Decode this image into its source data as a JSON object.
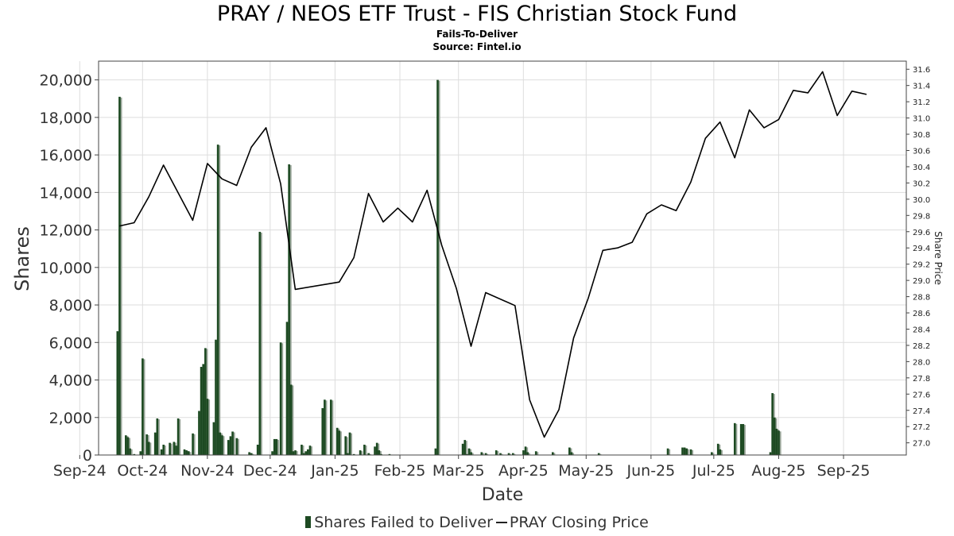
{
  "chart_data": {
    "type": "bar",
    "title": "PRAY / NEOS ETF Trust - FIS Christian Stock Fund",
    "subtitle_1": "Fails-To-Deliver",
    "subtitle_2": "Source: Fintel.io",
    "xlabel": "Date",
    "ylabel": "Shares",
    "y2label": "Share Price",
    "x_ticks": [
      "Sep-24",
      "Oct-24",
      "Nov-24",
      "Dec-24",
      "Jan-25",
      "Feb-25",
      "Mar-25",
      "Apr-25",
      "May-25",
      "Jun-25",
      "Jul-25",
      "Aug-25",
      "Sep-25"
    ],
    "y_ticks": [
      "0",
      "2,000",
      "4,000",
      "6,000",
      "8,000",
      "10,000",
      "12,000",
      "14,000",
      "16,000",
      "18,000",
      "20,000"
    ],
    "y2_ticks": [
      "27.0",
      "27.2",
      "27.4",
      "27.6",
      "27.8",
      "28.0",
      "28.2",
      "28.4",
      "28.6",
      "28.8",
      "29.0",
      "29.2",
      "29.4",
      "29.6",
      "29.8",
      "30.0",
      "30.2",
      "30.4",
      "30.6",
      "30.8",
      "31.0",
      "31.2",
      "31.4",
      "31.6"
    ],
    "ylim": [
      0,
      21000
    ],
    "y2lim": [
      26.85,
      31.7
    ],
    "grid": true,
    "legend_position": "bottom",
    "colors": {
      "bar": "#1d4a22",
      "bar_shadow": "#9aa69a",
      "line": "#000000",
      "grid": "#dddddd"
    },
    "series": [
      {
        "name": "Shares Failed to Deliver",
        "type": "bar",
        "points": [
          [
            "2024-09-19",
            6600
          ],
          [
            "2024-09-20",
            19100
          ],
          [
            "2024-09-23",
            1050
          ],
          [
            "2024-09-24",
            950
          ],
          [
            "2024-09-25",
            350
          ],
          [
            "2024-09-27",
            50
          ],
          [
            "2024-09-30",
            200
          ],
          [
            "2024-10-01",
            5150
          ],
          [
            "2024-10-03",
            1100
          ],
          [
            "2024-10-04",
            700
          ],
          [
            "2024-10-07",
            1200
          ],
          [
            "2024-10-08",
            1950
          ],
          [
            "2024-10-10",
            300
          ],
          [
            "2024-10-11",
            550
          ],
          [
            "2024-10-14",
            650
          ],
          [
            "2024-10-16",
            700
          ],
          [
            "2024-10-17",
            500
          ],
          [
            "2024-10-18",
            1950
          ],
          [
            "2024-10-21",
            300
          ],
          [
            "2024-10-22",
            250
          ],
          [
            "2024-10-23",
            200
          ],
          [
            "2024-10-25",
            1150
          ],
          [
            "2024-10-28",
            2350
          ],
          [
            "2024-10-29",
            4700
          ],
          [
            "2024-10-30",
            4850
          ],
          [
            "2024-10-31",
            5700
          ],
          [
            "2024-11-01",
            3000
          ],
          [
            "2024-11-04",
            1750
          ],
          [
            "2024-11-05",
            6150
          ],
          [
            "2024-11-06",
            16550
          ],
          [
            "2024-11-07",
            1200
          ],
          [
            "2024-11-08",
            1050
          ],
          [
            "2024-11-11",
            800
          ],
          [
            "2024-11-12",
            1000
          ],
          [
            "2024-11-13",
            1250
          ],
          [
            "2024-11-15",
            900
          ],
          [
            "2024-11-21",
            150
          ],
          [
            "2024-11-22",
            100
          ],
          [
            "2024-11-25",
            550
          ],
          [
            "2024-11-26",
            11900
          ],
          [
            "2024-12-02",
            200
          ],
          [
            "2024-12-03",
            850
          ],
          [
            "2024-12-04",
            850
          ],
          [
            "2024-12-06",
            6000
          ],
          [
            "2024-12-09",
            7100
          ],
          [
            "2024-12-10",
            15500
          ],
          [
            "2024-12-11",
            3750
          ],
          [
            "2024-12-12",
            200
          ],
          [
            "2024-12-13",
            250
          ],
          [
            "2024-12-16",
            550
          ],
          [
            "2024-12-17",
            100
          ],
          [
            "2024-12-18",
            200
          ],
          [
            "2024-12-19",
            300
          ],
          [
            "2024-12-20",
            500
          ],
          [
            "2024-12-26",
            2500
          ],
          [
            "2024-12-27",
            2950
          ],
          [
            "2024-12-30",
            2950
          ],
          [
            "2025-01-02",
            1450
          ],
          [
            "2025-01-03",
            1300
          ],
          [
            "2025-01-06",
            1000
          ],
          [
            "2025-01-07",
            100
          ],
          [
            "2025-01-08",
            1200
          ],
          [
            "2025-01-10",
            50
          ],
          [
            "2025-01-13",
            250
          ],
          [
            "2025-01-15",
            550
          ],
          [
            "2025-01-17",
            100
          ],
          [
            "2025-01-20",
            450
          ],
          [
            "2025-01-21",
            650
          ],
          [
            "2025-01-22",
            250
          ],
          [
            "2025-01-23",
            50
          ],
          [
            "2025-01-27",
            50
          ],
          [
            "2025-02-18",
            350
          ],
          [
            "2025-02-19",
            20000
          ],
          [
            "2025-03-03",
            600
          ],
          [
            "2025-03-04",
            800
          ],
          [
            "2025-03-05",
            50
          ],
          [
            "2025-03-06",
            350
          ],
          [
            "2025-03-07",
            150
          ],
          [
            "2025-03-12",
            150
          ],
          [
            "2025-03-14",
            100
          ],
          [
            "2025-03-19",
            250
          ],
          [
            "2025-03-21",
            100
          ],
          [
            "2025-03-25",
            100
          ],
          [
            "2025-03-27",
            100
          ],
          [
            "2025-04-01",
            250
          ],
          [
            "2025-04-02",
            450
          ],
          [
            "2025-04-03",
            150
          ],
          [
            "2025-04-07",
            200
          ],
          [
            "2025-04-15",
            150
          ],
          [
            "2025-04-23",
            400
          ],
          [
            "2025-04-24",
            150
          ],
          [
            "2025-05-07",
            100
          ],
          [
            "2025-06-09",
            350
          ],
          [
            "2025-06-16",
            400
          ],
          [
            "2025-06-17",
            400
          ],
          [
            "2025-06-18",
            350
          ],
          [
            "2025-06-20",
            300
          ],
          [
            "2025-06-30",
            150
          ],
          [
            "2025-07-03",
            600
          ],
          [
            "2025-07-04",
            300
          ],
          [
            "2025-07-11",
            1700
          ],
          [
            "2025-07-14",
            1650
          ],
          [
            "2025-07-15",
            1650
          ],
          [
            "2025-07-28",
            150
          ],
          [
            "2025-07-29",
            3300
          ],
          [
            "2025-07-30",
            2000
          ],
          [
            "2025-07-31",
            1400
          ],
          [
            "2025-08-01",
            1300
          ]
        ]
      },
      {
        "name": "PRAY Closing Price",
        "type": "line",
        "points": [
          [
            "2024-09-20",
            29.67
          ],
          [
            "2024-09-27",
            29.71
          ],
          [
            "2024-10-04",
            30.03
          ],
          [
            "2024-10-11",
            30.42
          ],
          [
            "2024-10-25",
            29.74
          ],
          [
            "2024-11-01",
            30.44
          ],
          [
            "2024-11-08",
            30.25
          ],
          [
            "2024-11-15",
            30.17
          ],
          [
            "2024-11-22",
            30.64
          ],
          [
            "2024-11-29",
            30.88
          ],
          [
            "2024-12-06",
            30.19
          ],
          [
            "2024-12-13",
            28.89
          ],
          [
            "2025-01-03",
            28.98
          ],
          [
            "2025-01-10",
            29.28
          ],
          [
            "2025-01-17",
            30.07
          ],
          [
            "2025-01-24",
            29.72
          ],
          [
            "2025-01-31",
            29.89
          ],
          [
            "2025-02-07",
            29.72
          ],
          [
            "2025-02-14",
            30.11
          ],
          [
            "2025-02-21",
            29.43
          ],
          [
            "2025-02-28",
            28.9
          ],
          [
            "2025-03-07",
            28.19
          ],
          [
            "2025-03-14",
            28.85
          ],
          [
            "2025-03-28",
            28.69
          ],
          [
            "2025-04-04",
            27.53
          ],
          [
            "2025-04-11",
            27.07
          ],
          [
            "2025-04-18",
            27.41
          ],
          [
            "2025-04-25",
            28.29
          ],
          [
            "2025-05-02",
            28.78
          ],
          [
            "2025-05-09",
            29.37
          ],
          [
            "2025-05-16",
            29.4
          ],
          [
            "2025-05-23",
            29.47
          ],
          [
            "2025-05-30",
            29.82
          ],
          [
            "2025-06-06",
            29.93
          ],
          [
            "2025-06-13",
            29.86
          ],
          [
            "2025-06-20",
            30.21
          ],
          [
            "2025-06-27",
            30.75
          ],
          [
            "2025-07-04",
            30.95
          ],
          [
            "2025-07-11",
            30.51
          ],
          [
            "2025-07-18",
            31.1
          ],
          [
            "2025-07-25",
            30.88
          ],
          [
            "2025-08-01",
            30.98
          ],
          [
            "2025-08-08",
            31.34
          ],
          [
            "2025-08-15",
            31.31
          ],
          [
            "2025-08-22",
            31.57
          ],
          [
            "2025-08-29",
            31.03
          ],
          [
            "2025-09-05",
            31.33
          ],
          [
            "2025-09-12",
            31.29
          ]
        ]
      }
    ]
  }
}
